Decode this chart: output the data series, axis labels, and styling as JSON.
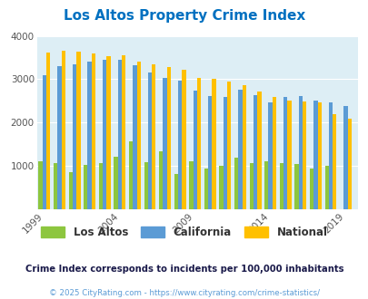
{
  "title": "Los Altos Property Crime Index",
  "subtitle": "Crime Index corresponds to incidents per 100,000 inhabitants",
  "copyright": "© 2025 CityRating.com - https://www.cityrating.com/crime-statistics/",
  "years": [
    1999,
    2000,
    2001,
    2002,
    2003,
    2004,
    2005,
    2006,
    2007,
    2008,
    2009,
    2010,
    2011,
    2012,
    2013,
    2014,
    2015,
    2016,
    2017,
    2018,
    2019
  ],
  "los_altos": [
    1100,
    1060,
    860,
    1020,
    1070,
    1220,
    1560,
    1080,
    1330,
    820,
    1110,
    950,
    1010,
    1200,
    1060,
    1100,
    1060,
    1040,
    950,
    1010,
    null
  ],
  "california": [
    3100,
    3310,
    3350,
    3410,
    3440,
    3440,
    3320,
    3160,
    3040,
    2960,
    2740,
    2620,
    2590,
    2750,
    2640,
    2460,
    2600,
    2620,
    2510,
    2470,
    2380
  ],
  "national": [
    3620,
    3660,
    3640,
    3600,
    3540,
    3550,
    3400,
    3340,
    3280,
    3210,
    3040,
    3000,
    2950,
    2870,
    2720,
    2600,
    2510,
    2490,
    2460,
    2200,
    2080
  ],
  "ylim": [
    0,
    4000
  ],
  "yticks": [
    0,
    1000,
    2000,
    3000,
    4000
  ],
  "xticks": [
    1999,
    2004,
    2009,
    2014,
    2019
  ],
  "bar_width": 0.26,
  "color_los_altos": "#8dc63f",
  "color_california": "#5b9bd5",
  "color_national": "#ffc000",
  "bg_color": "#ddeef5",
  "title_color": "#0070c0",
  "subtitle_color": "#1a1a4a",
  "copyright_color": "#5b9bd5"
}
